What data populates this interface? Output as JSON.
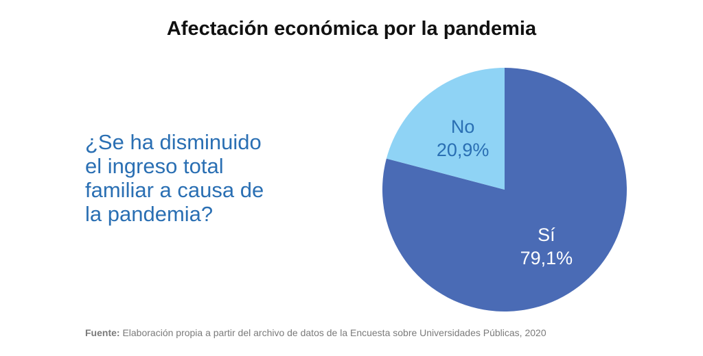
{
  "chart_data": {
    "type": "pie",
    "title": "Afectación económica por la pandemia",
    "question_lines": [
      "¿Se ha disminuido",
      "el ingreso total",
      "familiar a causa de",
      "la pandemia?"
    ],
    "slices": [
      {
        "name": "Sí",
        "value": 79.1,
        "value_label": "79,1%",
        "color": "#4a6bb5",
        "text_color": "#ffffff"
      },
      {
        "name": "No",
        "value": 20.9,
        "value_label": "20,9%",
        "color": "#8fd3f5",
        "text_color": "#2a6fb3"
      }
    ],
    "start": "12 o'clock, clockwise"
  },
  "source": {
    "label": "Fuente:",
    "text": " Elaboración propia a partir del archivo de datos de la Encuesta sobre Universidades Públicas, 2020"
  }
}
